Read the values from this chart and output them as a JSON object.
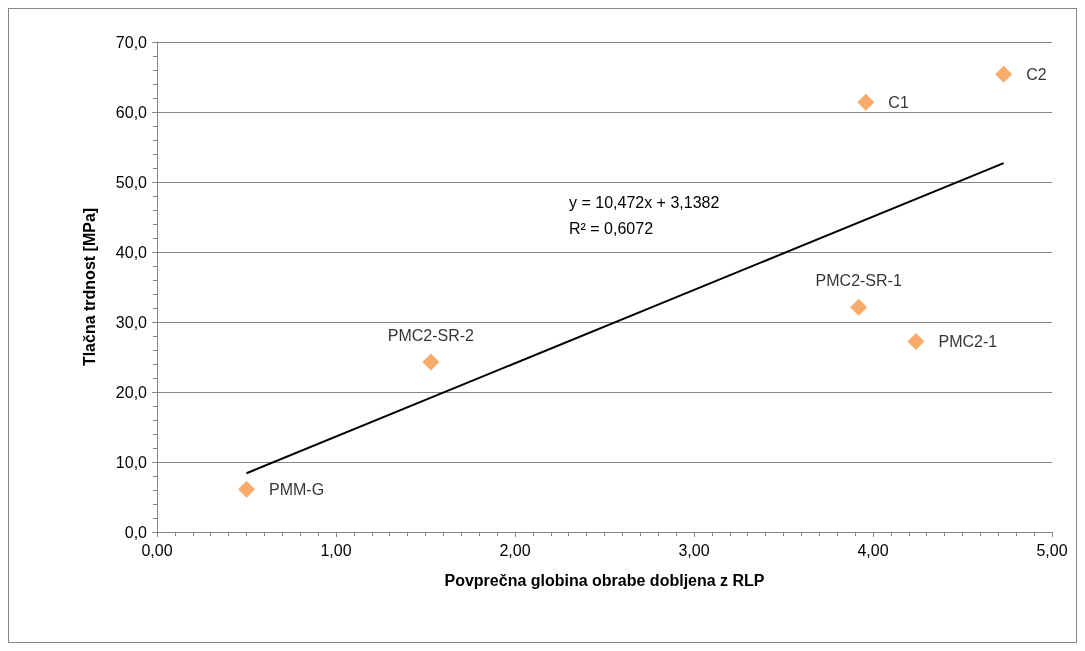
{
  "chart_data": {
    "type": "scatter",
    "xlabel": "Povprečna globina obrabe dobljena z RLP",
    "ylabel": "Tlačna trdnost [MPa]",
    "series": [
      {
        "name": "PMM-G",
        "color": "#f79646",
        "x": [
          0.5
        ],
        "values": [
          6.1
        ]
      },
      {
        "name": "PMC2-SR-2",
        "color": "#f79646",
        "x": [
          1.53
        ],
        "values": [
          24.3
        ]
      },
      {
        "name": "PMC2-SR-1",
        "color": "#f79646",
        "x": [
          3.92
        ],
        "values": [
          32.1
        ]
      },
      {
        "name": "PMC2-1",
        "color": "#f79646",
        "x": [
          4.24
        ],
        "values": [
          27.2
        ]
      },
      {
        "name": "C1",
        "color": "#f79646",
        "x": [
          3.96
        ],
        "values": [
          61.4
        ]
      },
      {
        "name": "C2",
        "color": "#f79646",
        "x": [
          4.73
        ],
        "values": [
          65.4
        ]
      },
      {
        "type": "line",
        "color": "#000000",
        "x": [
          0.5,
          4.73
        ],
        "values": [
          8.4,
          52.7
        ],
        "marker": "none"
      }
    ],
    "marker": "diamond",
    "annotations": [
      "y = 10,472x + 3,1382\nR² = 0,6072"
    ],
    "xlim": [
      0,
      5
    ],
    "xticks": [
      {
        "value": 0,
        "label": "0,00"
      },
      {
        "value": 1,
        "label": "1,00"
      },
      {
        "value": 2,
        "label": "2,00"
      },
      {
        "value": 3,
        "label": "3,00"
      },
      {
        "value": 4,
        "label": "4,00"
      },
      {
        "value": 5,
        "label": "5,00"
      }
    ],
    "ylim": [
      0,
      70
    ],
    "yticks": [
      {
        "value": 0,
        "label": "0,0"
      },
      {
        "value": 10,
        "label": "10,0"
      },
      {
        "value": 20,
        "label": "20,0"
      },
      {
        "value": 30,
        "label": "30,0"
      },
      {
        "value": 40,
        "label": "40,0"
      },
      {
        "value": 50,
        "label": "50,0"
      },
      {
        "value": 60,
        "label": "60,0"
      },
      {
        "value": 70,
        "label": "70,0"
      }
    ],
    "grid": "y",
    "legend": false
  }
}
